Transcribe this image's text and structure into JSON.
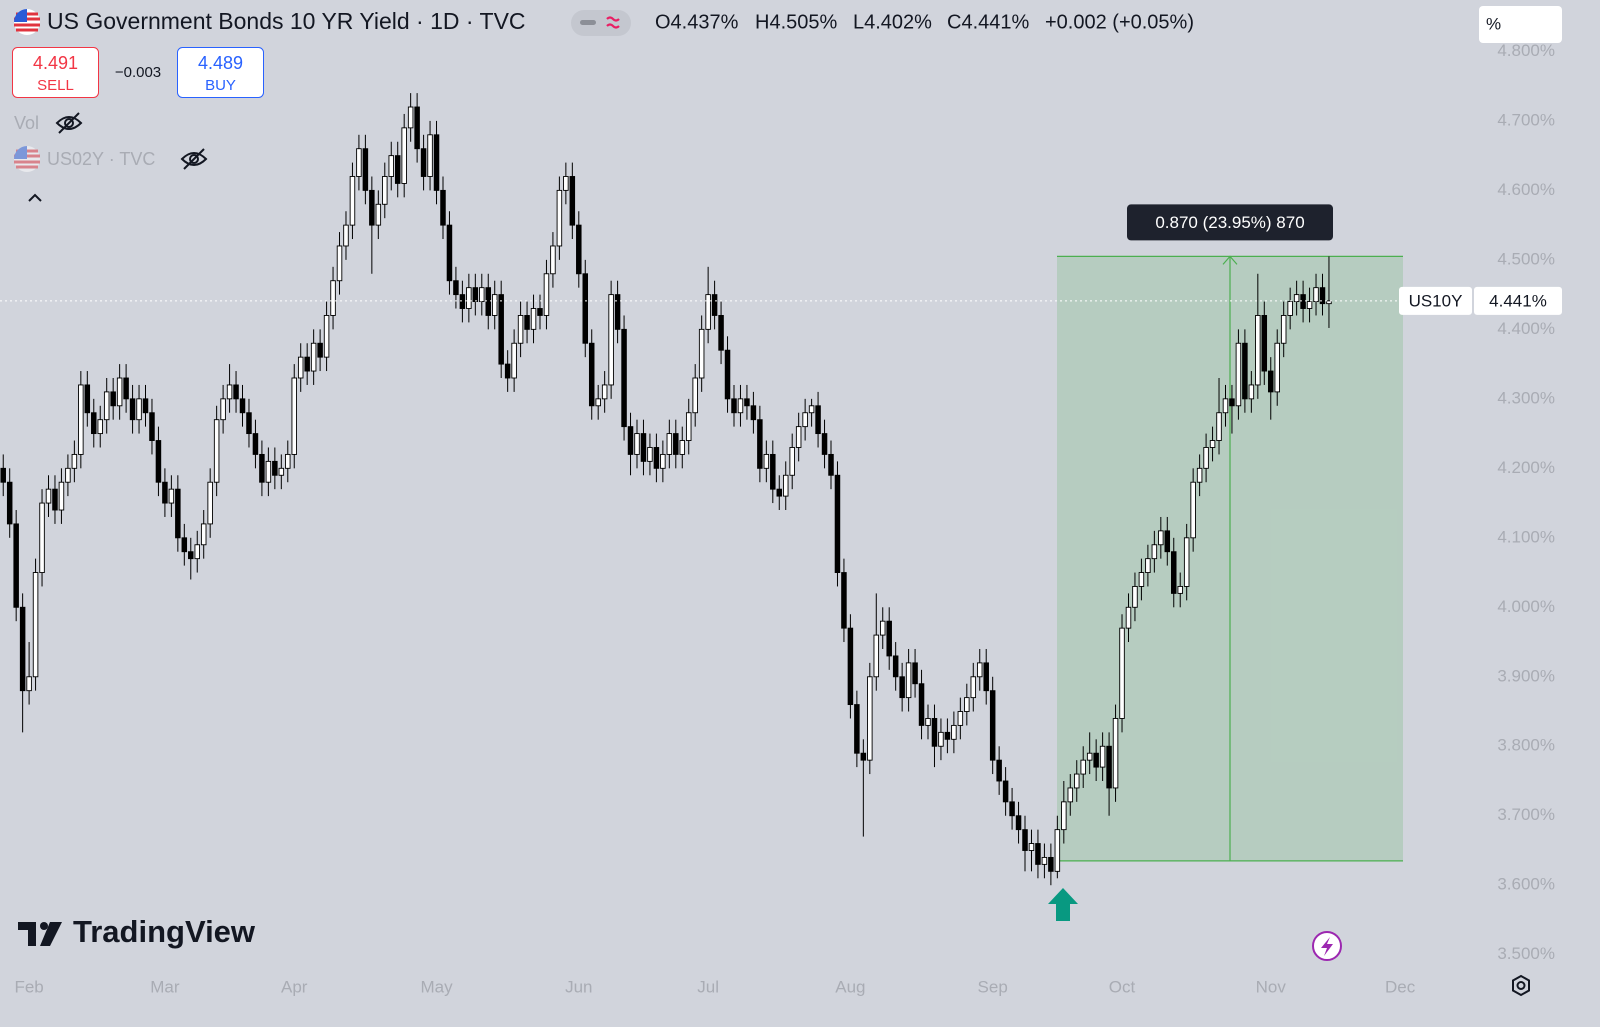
{
  "header": {
    "title": "US Government Bonds 10 YR Yield · 1D · TVC",
    "open": "O4.437%",
    "high": "H4.505%",
    "low": "L4.402%",
    "close": "C4.441%",
    "change": "+0.002 (+0.05%)",
    "sell_price": "4.491",
    "sell_label": "SELL",
    "spread": "−0.003",
    "buy_price": "4.489",
    "buy_label": "BUY",
    "volume_label": "Vol",
    "compare_symbol": "US02Y · TVC",
    "scale_mode": "%"
  },
  "logo": "TradingView",
  "chart_data": {
    "type": "candlestick",
    "categories": [
      null,
      null,
      null,
      null,
      "Feb",
      null,
      null,
      null,
      null,
      null,
      null,
      null,
      null,
      null,
      null,
      null,
      null,
      null,
      null,
      null,
      null,
      null,
      null,
      null,
      null,
      "Mar",
      null,
      null,
      null,
      null,
      null,
      null,
      null,
      null,
      null,
      null,
      null,
      null,
      null,
      null,
      null,
      null,
      null,
      null,
      null,
      "Apr",
      null,
      null,
      null,
      null,
      null,
      null,
      null,
      null,
      null,
      null,
      null,
      null,
      null,
      null,
      null,
      null,
      null,
      null,
      null,
      null,
      null,
      "May",
      null,
      null,
      null,
      null,
      null,
      null,
      null,
      null,
      null,
      null,
      null,
      null,
      null,
      null,
      null,
      null,
      null,
      null,
      null,
      null,
      null,
      "Jun",
      null,
      null,
      null,
      null,
      null,
      null,
      null,
      null,
      null,
      null,
      null,
      null,
      null,
      null,
      null,
      null,
      null,
      null,
      null,
      "Jul",
      null,
      null,
      null,
      null,
      null,
      null,
      null,
      null,
      null,
      null,
      null,
      null,
      null,
      null,
      null,
      null,
      null,
      null,
      null,
      null,
      null,
      "Aug",
      null,
      null,
      null,
      null,
      null,
      null,
      null,
      null,
      null,
      null,
      null,
      null,
      null,
      null,
      null,
      null,
      null,
      null,
      null,
      null,
      null,
      "Sep",
      null,
      null,
      null,
      null,
      null,
      null,
      null,
      null,
      null,
      null,
      null,
      null,
      null,
      null,
      null,
      null,
      null,
      null,
      null,
      "Oct",
      null,
      null,
      null,
      null,
      null,
      null,
      null,
      null,
      null,
      null,
      null,
      null,
      null,
      null,
      null,
      null,
      null,
      null,
      null,
      null,
      null,
      null,
      "Nov",
      null,
      null,
      null,
      null,
      null,
      null,
      null,
      null,
      null,
      null,
      null,
      null,
      null,
      null,
      null,
      null,
      null,
      null,
      null,
      "Dec",
      null,
      null,
      null,
      null,
      null,
      null,
      null,
      null,
      null,
      null
    ],
    "series": [
      {
        "name": "US10Y",
        "open": [
          4.2,
          4.18,
          4.12,
          4.0,
          3.88,
          3.9,
          4.05,
          4.15,
          4.17,
          4.14,
          4.18,
          4.2,
          4.22,
          4.32,
          4.28,
          4.25,
          4.27,
          4.31,
          4.29,
          4.33,
          4.3,
          4.27,
          4.3,
          4.28,
          4.24,
          4.18,
          4.15,
          4.17,
          4.1,
          4.08,
          4.07,
          4.09,
          4.12,
          4.18,
          4.27,
          4.3,
          4.32,
          4.3,
          4.28,
          4.25,
          4.22,
          4.18,
          4.21,
          4.19,
          4.2,
          4.22,
          4.33,
          4.36,
          4.34,
          4.38,
          4.36,
          4.42,
          4.47,
          4.52,
          4.55,
          4.62,
          4.66,
          4.6,
          4.55,
          4.58,
          4.62,
          4.65,
          4.61,
          4.69,
          4.72,
          4.66,
          4.62,
          4.68,
          4.6,
          4.55,
          4.47,
          4.45,
          4.43,
          4.46,
          4.44,
          4.46,
          4.42,
          4.45,
          4.35,
          4.33,
          4.38,
          4.42,
          4.4,
          4.43,
          4.42,
          4.48,
          4.52,
          4.6,
          4.62,
          4.55,
          4.48,
          4.38,
          4.29,
          4.3,
          4.32,
          4.45,
          4.4,
          4.26,
          4.22,
          4.25,
          4.21,
          4.23,
          4.2,
          4.22,
          4.25,
          4.22,
          4.24,
          4.28,
          4.33,
          4.4,
          4.45,
          4.42,
          4.37,
          4.3,
          4.28,
          4.3,
          4.29,
          4.27,
          4.2,
          4.22,
          4.17,
          4.16,
          4.19,
          4.23,
          4.26,
          4.28,
          4.29,
          4.25,
          4.22,
          4.19,
          4.05,
          3.97,
          3.86,
          3.79,
          3.78,
          3.9,
          3.96,
          3.98,
          3.93,
          3.9,
          3.87,
          3.92,
          3.89,
          3.83,
          3.84,
          3.8,
          3.82,
          3.81,
          3.83,
          3.85,
          3.87,
          3.9,
          3.92,
          3.88,
          3.78,
          3.75,
          3.72,
          3.7,
          3.68,
          3.65,
          3.66,
          3.63,
          3.64,
          3.62,
          3.68,
          3.72,
          3.74,
          3.76,
          3.78,
          3.79,
          3.77,
          3.8,
          3.74,
          3.84,
          3.97,
          4.0,
          4.03,
          4.05,
          4.07,
          4.09,
          4.11,
          4.08,
          4.02,
          4.03,
          4.1,
          4.18,
          4.2,
          4.23,
          4.24,
          4.28,
          4.3,
          4.29,
          4.38,
          4.3,
          4.32,
          4.42,
          4.34,
          4.31,
          4.38,
          4.42,
          4.44,
          4.45,
          4.43,
          4.44,
          4.46,
          4.437,
          null,
          null,
          null,
          null,
          null,
          null,
          null,
          null,
          null,
          null,
          null,
          null,
          null,
          null,
          null,
          null,
          null,
          null,
          null,
          null,
          null
        ],
        "high": [
          4.22,
          4.2,
          4.14,
          4.02,
          3.95,
          4.07,
          4.17,
          4.19,
          4.19,
          4.2,
          4.22,
          4.24,
          4.34,
          4.34,
          4.3,
          4.29,
          4.33,
          4.33,
          4.35,
          4.35,
          4.32,
          4.32,
          4.32,
          4.3,
          4.26,
          4.2,
          4.19,
          4.19,
          4.12,
          4.1,
          4.11,
          4.14,
          4.2,
          4.29,
          4.32,
          4.35,
          4.34,
          4.32,
          4.3,
          4.27,
          4.24,
          4.23,
          4.23,
          4.22,
          4.24,
          4.35,
          4.38,
          4.38,
          4.4,
          4.4,
          4.44,
          4.49,
          4.54,
          4.57,
          4.64,
          4.68,
          4.68,
          4.62,
          4.6,
          4.64,
          4.67,
          4.67,
          4.71,
          4.74,
          4.74,
          4.68,
          4.7,
          4.7,
          4.62,
          4.57,
          4.49,
          4.47,
          4.48,
          4.48,
          4.48,
          4.48,
          4.47,
          4.47,
          4.37,
          4.4,
          4.44,
          4.44,
          4.45,
          4.45,
          4.5,
          4.54,
          4.62,
          4.64,
          4.64,
          4.57,
          4.5,
          4.4,
          4.32,
          4.34,
          4.47,
          4.47,
          4.42,
          4.28,
          4.27,
          4.27,
          4.25,
          4.25,
          4.24,
          4.27,
          4.27,
          4.26,
          4.3,
          4.35,
          4.42,
          4.49,
          4.47,
          4.44,
          4.39,
          4.32,
          4.32,
          4.32,
          4.31,
          4.29,
          4.24,
          4.24,
          4.19,
          4.21,
          4.25,
          4.28,
          4.3,
          4.3,
          4.31,
          4.27,
          4.24,
          4.21,
          4.07,
          3.99,
          3.88,
          3.81,
          3.92,
          4.02,
          4.0,
          4.0,
          3.95,
          3.92,
          3.94,
          3.94,
          3.91,
          3.86,
          3.86,
          3.84,
          3.84,
          3.85,
          3.87,
          3.89,
          3.92,
          3.94,
          3.94,
          3.9,
          3.8,
          3.77,
          3.74,
          3.72,
          3.7,
          3.68,
          3.68,
          3.66,
          3.66,
          3.7,
          3.75,
          3.76,
          3.78,
          3.8,
          3.82,
          3.81,
          3.82,
          3.82,
          3.86,
          3.99,
          4.02,
          4.05,
          4.07,
          4.09,
          4.11,
          4.13,
          4.13,
          4.1,
          4.05,
          4.12,
          4.2,
          4.22,
          4.25,
          4.26,
          4.33,
          4.32,
          4.32,
          4.4,
          4.4,
          4.34,
          4.48,
          4.44,
          4.36,
          4.4,
          4.44,
          4.46,
          4.47,
          4.47,
          4.46,
          4.48,
          4.48,
          4.505,
          null,
          null,
          null,
          null,
          null,
          null,
          null,
          null,
          null,
          null,
          null,
          null,
          null,
          null,
          null,
          null,
          null,
          null,
          null,
          null,
          null
        ],
        "low": [
          4.16,
          4.1,
          3.98,
          3.82,
          3.86,
          3.88,
          4.03,
          4.13,
          4.12,
          4.12,
          4.16,
          4.18,
          4.2,
          4.26,
          4.23,
          4.23,
          4.25,
          4.27,
          4.27,
          4.28,
          4.25,
          4.25,
          4.26,
          4.22,
          4.16,
          4.13,
          4.13,
          4.08,
          4.06,
          4.04,
          4.05,
          4.07,
          4.1,
          4.16,
          4.25,
          4.28,
          4.28,
          4.26,
          4.23,
          4.2,
          4.16,
          4.16,
          4.17,
          4.17,
          4.18,
          4.2,
          4.31,
          4.32,
          4.32,
          4.34,
          4.34,
          4.4,
          4.45,
          4.5,
          4.53,
          4.6,
          4.58,
          4.48,
          4.53,
          4.56,
          4.6,
          4.59,
          4.59,
          4.67,
          4.64,
          4.6,
          4.6,
          4.58,
          4.53,
          4.45,
          4.43,
          4.41,
          4.41,
          4.42,
          4.42,
          4.4,
          4.4,
          4.33,
          4.31,
          4.31,
          4.36,
          4.38,
          4.38,
          4.4,
          4.4,
          4.46,
          4.5,
          4.58,
          4.53,
          4.46,
          4.36,
          4.27,
          4.27,
          4.28,
          4.3,
          4.38,
          4.24,
          4.19,
          4.2,
          4.19,
          4.19,
          4.18,
          4.18,
          4.2,
          4.2,
          4.2,
          4.22,
          4.26,
          4.31,
          4.38,
          4.4,
          4.35,
          4.28,
          4.26,
          4.26,
          4.27,
          4.25,
          4.18,
          4.18,
          4.15,
          4.14,
          4.14,
          4.17,
          4.21,
          4.24,
          4.26,
          4.23,
          4.2,
          4.17,
          4.03,
          3.95,
          3.84,
          3.77,
          3.67,
          3.76,
          3.88,
          3.94,
          3.91,
          3.88,
          3.85,
          3.85,
          3.87,
          3.81,
          3.81,
          3.77,
          3.78,
          3.79,
          3.79,
          3.81,
          3.83,
          3.85,
          3.88,
          3.86,
          3.76,
          3.73,
          3.7,
          3.68,
          3.66,
          3.62,
          3.62,
          3.61,
          3.61,
          3.6,
          3.61,
          3.66,
          3.7,
          3.72,
          3.74,
          3.76,
          3.75,
          3.75,
          3.7,
          3.72,
          3.82,
          3.95,
          3.98,
          4.01,
          4.03,
          4.05,
          4.07,
          4.06,
          4.0,
          4.0,
          4.01,
          4.08,
          4.16,
          4.18,
          4.21,
          4.22,
          4.26,
          4.25,
          4.27,
          4.28,
          4.28,
          4.3,
          4.32,
          4.27,
          4.29,
          4.36,
          4.4,
          4.42,
          4.41,
          4.41,
          4.42,
          4.42,
          4.402,
          null,
          null,
          null,
          null,
          null,
          null,
          null,
          null,
          null,
          null,
          null,
          null,
          null,
          null,
          null,
          null,
          null,
          null,
          null,
          null,
          null
        ],
        "close": [
          4.18,
          4.12,
          4.0,
          3.88,
          3.9,
          4.05,
          4.15,
          4.17,
          4.14,
          4.18,
          4.2,
          4.22,
          4.32,
          4.28,
          4.25,
          4.27,
          4.31,
          4.29,
          4.33,
          4.3,
          4.27,
          4.3,
          4.28,
          4.24,
          4.18,
          4.15,
          4.17,
          4.1,
          4.08,
          4.07,
          4.09,
          4.12,
          4.18,
          4.27,
          4.3,
          4.32,
          4.3,
          4.28,
          4.25,
          4.22,
          4.18,
          4.21,
          4.19,
          4.2,
          4.22,
          4.33,
          4.36,
          4.34,
          4.38,
          4.36,
          4.42,
          4.47,
          4.52,
          4.55,
          4.62,
          4.66,
          4.6,
          4.55,
          4.58,
          4.62,
          4.65,
          4.61,
          4.69,
          4.72,
          4.66,
          4.62,
          4.68,
          4.6,
          4.55,
          4.47,
          4.45,
          4.43,
          4.46,
          4.44,
          4.46,
          4.42,
          4.45,
          4.35,
          4.33,
          4.38,
          4.42,
          4.4,
          4.43,
          4.42,
          4.48,
          4.52,
          4.6,
          4.62,
          4.55,
          4.48,
          4.38,
          4.29,
          4.3,
          4.32,
          4.45,
          4.4,
          4.26,
          4.22,
          4.25,
          4.21,
          4.23,
          4.2,
          4.22,
          4.25,
          4.22,
          4.24,
          4.28,
          4.33,
          4.4,
          4.45,
          4.42,
          4.37,
          4.3,
          4.28,
          4.3,
          4.29,
          4.27,
          4.2,
          4.22,
          4.17,
          4.16,
          4.19,
          4.23,
          4.26,
          4.28,
          4.29,
          4.25,
          4.22,
          4.19,
          4.05,
          3.97,
          3.86,
          3.79,
          3.78,
          3.9,
          3.96,
          3.98,
          3.93,
          3.9,
          3.87,
          3.92,
          3.89,
          3.83,
          3.84,
          3.8,
          3.82,
          3.81,
          3.83,
          3.85,
          3.87,
          3.9,
          3.92,
          3.88,
          3.78,
          3.75,
          3.72,
          3.7,
          3.68,
          3.65,
          3.66,
          3.63,
          3.64,
          3.62,
          3.68,
          3.72,
          3.74,
          3.76,
          3.78,
          3.79,
          3.77,
          3.8,
          3.74,
          3.84,
          3.97,
          4.0,
          4.03,
          4.05,
          4.07,
          4.09,
          4.11,
          4.08,
          4.02,
          4.03,
          4.1,
          4.18,
          4.2,
          4.23,
          4.24,
          4.28,
          4.3,
          4.29,
          4.38,
          4.3,
          4.32,
          4.42,
          4.34,
          4.31,
          4.38,
          4.42,
          4.44,
          4.45,
          4.43,
          4.44,
          4.46,
          4.437,
          4.441,
          null,
          null,
          null,
          null,
          null,
          null,
          null,
          null,
          null,
          null,
          null,
          null,
          null,
          null,
          null,
          null,
          null,
          null,
          null,
          null,
          null
        ]
      }
    ],
    "up_color": "#ffffff",
    "down_color": "#000000",
    "wick_color": "#000000",
    "ylim": [
      3.478,
      4.874
    ],
    "yticks": [
      {
        "value": 3.5,
        "label": "3.500%"
      },
      {
        "value": 3.6,
        "label": "3.600%"
      },
      {
        "value": 3.7,
        "label": "3.700%"
      },
      {
        "value": 3.8,
        "label": "3.800%"
      },
      {
        "value": 3.9,
        "label": "3.900%"
      },
      {
        "value": 4.0,
        "label": "4.000%"
      },
      {
        "value": 4.1,
        "label": "4.100%"
      },
      {
        "value": 4.2,
        "label": "4.200%"
      },
      {
        "value": 4.3,
        "label": "4.300%"
      },
      {
        "value": 4.4,
        "label": "4.400%"
      },
      {
        "value": 4.5,
        "label": "4.500%"
      },
      {
        "value": 4.6,
        "label": "4.600%"
      },
      {
        "value": 4.7,
        "label": "4.700%"
      },
      {
        "value": 4.8,
        "label": "4.800%"
      }
    ],
    "grid": false,
    "last_value_label": "4.441%",
    "measure": {
      "from": 3.635,
      "to": 4.505,
      "label": "0.870 (23.95%) 870",
      "color": "#4caf50"
    }
  }
}
